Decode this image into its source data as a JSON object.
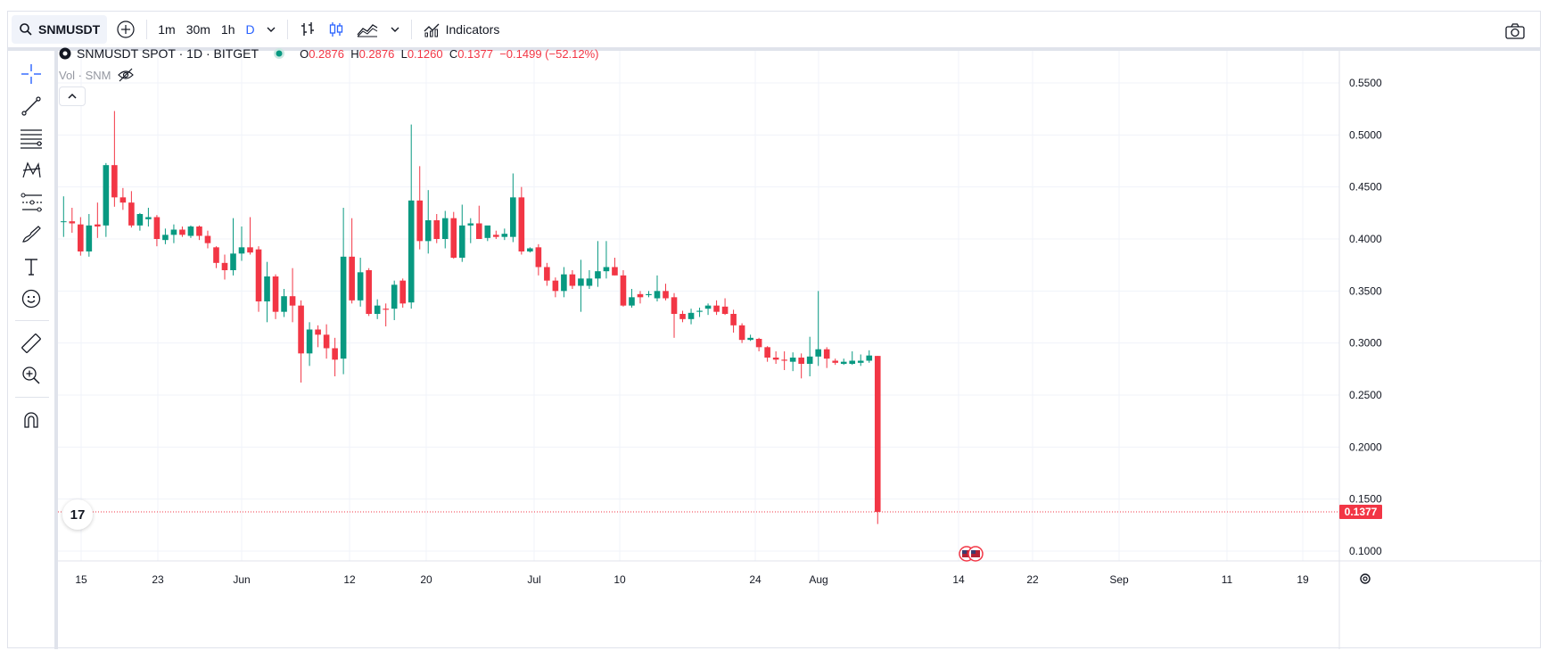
{
  "toolbar": {
    "symbol": "SNMUSDT",
    "intervals": [
      "1m",
      "30m",
      "1h",
      "D"
    ],
    "indicators_label": "Indicators"
  },
  "legend": {
    "title": "SNMUSDT SPOT · 1D · BITGET",
    "o_label": "O",
    "o": "0.2876",
    "h_label": "H",
    "h": "0.2876",
    "l_label": "L",
    "l": "0.1260",
    "c_label": "C",
    "c": "0.1377",
    "change": "−0.1499 (−52.12%)",
    "vol_label": "Vol · SNM"
  },
  "price_label": "0.1377",
  "logo_text": "17",
  "colors": {
    "up": "#089981",
    "down": "#f23645",
    "accent": "#2962ff"
  },
  "icons": [
    "search-icon",
    "add-symbol-icon",
    "chevron-down-icon",
    "bar-chart-icon",
    "candles-icon",
    "area-chart-icon",
    "indicators-icon",
    "camera-icon",
    "crosshair-icon",
    "trend-line-icon",
    "fib-icon",
    "pattern-icon",
    "projection-icon",
    "brush-icon",
    "text-icon",
    "emoji-icon",
    "ruler-icon",
    "zoom-in-icon",
    "magnet-icon",
    "settings-icon",
    "eye-off-icon",
    "chevron-up-icon"
  ],
  "chart_data": {
    "type": "candlestick",
    "yticks": [
      "0.5500",
      "0.5000",
      "0.4500",
      "0.4000",
      "0.3500",
      "0.3000",
      "0.2500",
      "0.2000",
      "0.1500",
      "0.1000"
    ],
    "xticks": [
      "15",
      "23",
      "Jun",
      "12",
      "20",
      "Jul",
      "10",
      "24",
      "Aug",
      "14",
      "22",
      "Sep",
      "11",
      "19"
    ],
    "last_price": 0.1377,
    "candles": [
      [
        0.417,
        0.441,
        0.402,
        0.417
      ],
      [
        0.417,
        0.43,
        0.406,
        0.415
      ],
      [
        0.414,
        0.421,
        0.384,
        0.388
      ],
      [
        0.388,
        0.424,
        0.383,
        0.413
      ],
      [
        0.414,
        0.435,
        0.401,
        0.412
      ],
      [
        0.413,
        0.473,
        0.402,
        0.471
      ],
      [
        0.471,
        0.523,
        0.431,
        0.44
      ],
      [
        0.44,
        0.449,
        0.428,
        0.435
      ],
      [
        0.435,
        0.446,
        0.411,
        0.413
      ],
      [
        0.413,
        0.425,
        0.408,
        0.424
      ],
      [
        0.419,
        0.43,
        0.412,
        0.421
      ],
      [
        0.421,
        0.423,
        0.393,
        0.4
      ],
      [
        0.399,
        0.41,
        0.395,
        0.404
      ],
      [
        0.404,
        0.414,
        0.396,
        0.409
      ],
      [
        0.409,
        0.412,
        0.402,
        0.404
      ],
      [
        0.403,
        0.413,
        0.401,
        0.412
      ],
      [
        0.412,
        0.413,
        0.399,
        0.403
      ],
      [
        0.403,
        0.408,
        0.391,
        0.396
      ],
      [
        0.392,
        0.393,
        0.372,
        0.377
      ],
      [
        0.377,
        0.385,
        0.361,
        0.37
      ],
      [
        0.37,
        0.42,
        0.365,
        0.386
      ],
      [
        0.386,
        0.412,
        0.379,
        0.392
      ],
      [
        0.392,
        0.421,
        0.385,
        0.387
      ],
      [
        0.39,
        0.393,
        0.33,
        0.34
      ],
      [
        0.34,
        0.378,
        0.32,
        0.364
      ],
      [
        0.364,
        0.366,
        0.323,
        0.33
      ],
      [
        0.33,
        0.352,
        0.325,
        0.345
      ],
      [
        0.345,
        0.372,
        0.32,
        0.336
      ],
      [
        0.336,
        0.341,
        0.262,
        0.29
      ],
      [
        0.29,
        0.32,
        0.278,
        0.313
      ],
      [
        0.313,
        0.317,
        0.296,
        0.308
      ],
      [
        0.308,
        0.318,
        0.285,
        0.295
      ],
      [
        0.295,
        0.305,
        0.268,
        0.284
      ],
      [
        0.285,
        0.43,
        0.27,
        0.383
      ],
      [
        0.383,
        0.42,
        0.338,
        0.341
      ],
      [
        0.341,
        0.382,
        0.335,
        0.368
      ],
      [
        0.37,
        0.372,
        0.326,
        0.328
      ],
      [
        0.328,
        0.342,
        0.323,
        0.336
      ],
      [
        0.333,
        0.338,
        0.316,
        0.332
      ],
      [
        0.333,
        0.36,
        0.322,
        0.356
      ],
      [
        0.36,
        0.362,
        0.334,
        0.338
      ],
      [
        0.339,
        0.51,
        0.333,
        0.437
      ],
      [
        0.437,
        0.47,
        0.39,
        0.398
      ],
      [
        0.398,
        0.447,
        0.386,
        0.418
      ],
      [
        0.418,
        0.424,
        0.396,
        0.4
      ],
      [
        0.4,
        0.427,
        0.391,
        0.42
      ],
      [
        0.42,
        0.426,
        0.381,
        0.382
      ],
      [
        0.382,
        0.433,
        0.378,
        0.413
      ],
      [
        0.413,
        0.42,
        0.396,
        0.415
      ],
      [
        0.415,
        0.432,
        0.4,
        0.4
      ],
      [
        0.401,
        0.41,
        0.398,
        0.413
      ],
      [
        0.404,
        0.408,
        0.4,
        0.402
      ],
      [
        0.402,
        0.41,
        0.399,
        0.405
      ],
      [
        0.402,
        0.463,
        0.397,
        0.44
      ],
      [
        0.44,
        0.45,
        0.385,
        0.388
      ],
      [
        0.388,
        0.392,
        0.387,
        0.391
      ],
      [
        0.392,
        0.395,
        0.365,
        0.373
      ],
      [
        0.373,
        0.377,
        0.355,
        0.36
      ],
      [
        0.36,
        0.363,
        0.344,
        0.35
      ],
      [
        0.35,
        0.373,
        0.344,
        0.366
      ],
      [
        0.366,
        0.37,
        0.352,
        0.355
      ],
      [
        0.355,
        0.38,
        0.33,
        0.362
      ],
      [
        0.355,
        0.37,
        0.352,
        0.362
      ],
      [
        0.362,
        0.398,
        0.354,
        0.369
      ],
      [
        0.369,
        0.398,
        0.362,
        0.373
      ],
      [
        0.373,
        0.382,
        0.365,
        0.365
      ],
      [
        0.365,
        0.37,
        0.335,
        0.336
      ],
      [
        0.336,
        0.352,
        0.334,
        0.344
      ],
      [
        0.347,
        0.35,
        0.338,
        0.344
      ],
      [
        0.346,
        0.35,
        0.344,
        0.347
      ],
      [
        0.343,
        0.365,
        0.34,
        0.35
      ],
      [
        0.35,
        0.357,
        0.341,
        0.343
      ],
      [
        0.344,
        0.348,
        0.305,
        0.328
      ],
      [
        0.328,
        0.331,
        0.32,
        0.323
      ],
      [
        0.323,
        0.333,
        0.318,
        0.329
      ],
      [
        0.33,
        0.334,
        0.325,
        0.331
      ],
      [
        0.333,
        0.338,
        0.327,
        0.336
      ],
      [
        0.336,
        0.341,
        0.327,
        0.33
      ],
      [
        0.335,
        0.343,
        0.327,
        0.328
      ],
      [
        0.328,
        0.332,
        0.31,
        0.317
      ],
      [
        0.317,
        0.319,
        0.3,
        0.303
      ],
      [
        0.303,
        0.308,
        0.302,
        0.305
      ],
      [
        0.304,
        0.305,
        0.292,
        0.296
      ],
      [
        0.296,
        0.297,
        0.282,
        0.286
      ],
      [
        0.286,
        0.292,
        0.28,
        0.284
      ],
      [
        0.284,
        0.292,
        0.274,
        0.283
      ],
      [
        0.282,
        0.291,
        0.273,
        0.286
      ],
      [
        0.286,
        0.29,
        0.266,
        0.28
      ],
      [
        0.28,
        0.306,
        0.268,
        0.287
      ],
      [
        0.287,
        0.35,
        0.278,
        0.294
      ],
      [
        0.294,
        0.296,
        0.276,
        0.285
      ],
      [
        0.283,
        0.285,
        0.279,
        0.281
      ],
      [
        0.28,
        0.285,
        0.279,
        0.282
      ],
      [
        0.28,
        0.292,
        0.279,
        0.283
      ],
      [
        0.281,
        0.289,
        0.278,
        0.283
      ],
      [
        0.283,
        0.293,
        0.281,
        0.288
      ],
      [
        0.2876,
        0.2876,
        0.126,
        0.1377
      ]
    ]
  }
}
